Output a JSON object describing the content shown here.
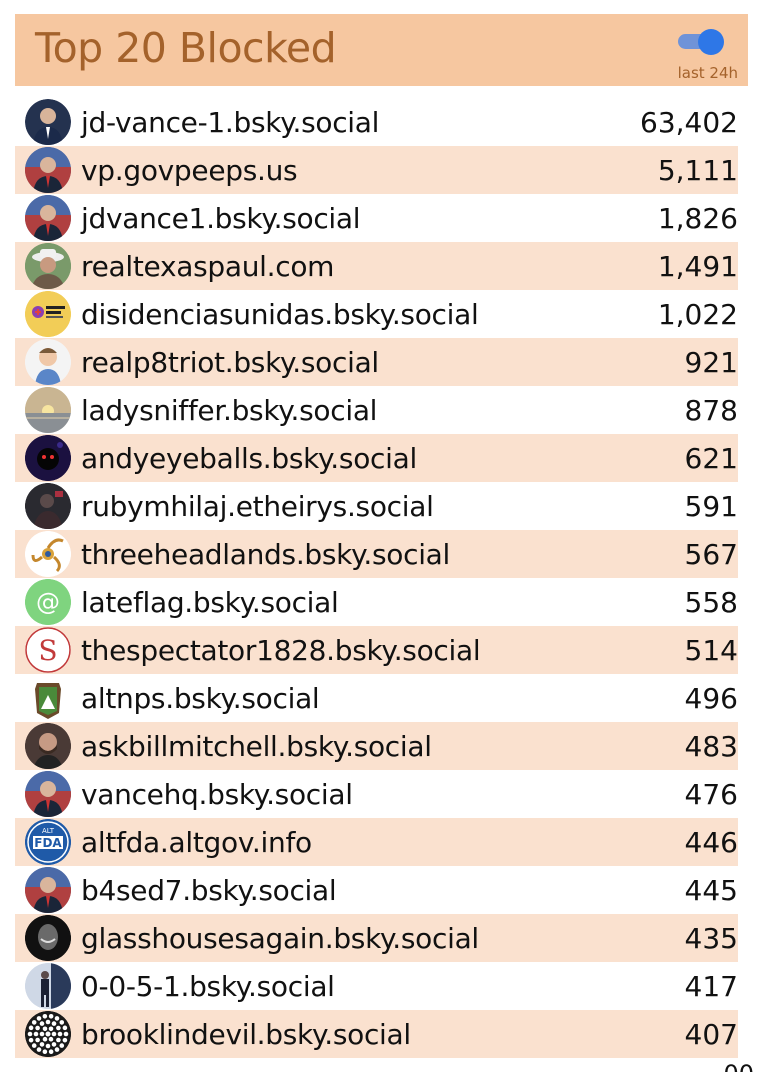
{
  "header": {
    "title": "Top 20 Blocked",
    "toggle_caption": "last 24h",
    "toggle_on": true
  },
  "colors": {
    "header_bg": "#f6c7a0",
    "title_text": "#a4622b",
    "alt_row_bg": "#fae1cf",
    "toggle_blue": "#2e77e7"
  },
  "rows": [
    {
      "handle": "jd-vance-1.bsky.social",
      "count": "63,402",
      "avatar": "portrait-dark-suit-icon"
    },
    {
      "handle": "vp.govpeeps.us",
      "count": "5,111",
      "avatar": "portrait-flag-icon"
    },
    {
      "handle": "jdvance1.bsky.social",
      "count": "1,826",
      "avatar": "portrait-flag-icon"
    },
    {
      "handle": "realtexaspaul.com",
      "count": "1,491",
      "avatar": "portrait-hat-icon"
    },
    {
      "handle": "disidenciasunidas.bsky.social",
      "count": "1,022",
      "avatar": "disidencias-logo-icon"
    },
    {
      "handle": "realp8triot.bsky.social",
      "count": "921",
      "avatar": "cartoon-avatar-icon"
    },
    {
      "handle": "ladysniffer.bsky.social",
      "count": "878",
      "avatar": "sunset-icon"
    },
    {
      "handle": "andyeyeballs.bsky.social",
      "count": "621",
      "avatar": "dark-figure-icon"
    },
    {
      "handle": "rubymhilaj.etheirys.social",
      "count": "591",
      "avatar": "dark-photo-icon"
    },
    {
      "handle": "threeheadlands.bsky.social",
      "count": "567",
      "avatar": "triskelion-icon"
    },
    {
      "handle": "lateflag.bsky.social",
      "count": "558",
      "avatar": "at-sign-icon"
    },
    {
      "handle": "thespectator1828.bsky.social",
      "count": "514",
      "avatar": "spectator-s-icon"
    },
    {
      "handle": "altnps.bsky.social",
      "count": "496",
      "avatar": "park-badge-icon"
    },
    {
      "handle": "askbillmitchell.bsky.social",
      "count": "483",
      "avatar": "portrait-beard-icon"
    },
    {
      "handle": "vancehq.bsky.social",
      "count": "476",
      "avatar": "portrait-flag-icon"
    },
    {
      "handle": "altfda.altgov.info",
      "count": "446",
      "avatar": "alt-fda-icon"
    },
    {
      "handle": "b4sed7.bsky.social",
      "count": "445",
      "avatar": "portrait-flag-icon"
    },
    {
      "handle": "glasshousesagain.bsky.social",
      "count": "435",
      "avatar": "portrait-bw-icon"
    },
    {
      "handle": "0-0-5-1.bsky.social",
      "count": "417",
      "avatar": "walking-figure-icon"
    },
    {
      "handle": "brooklindevil.bsky.social",
      "count": "407",
      "avatar": "dot-circle-icon"
    }
  ]
}
